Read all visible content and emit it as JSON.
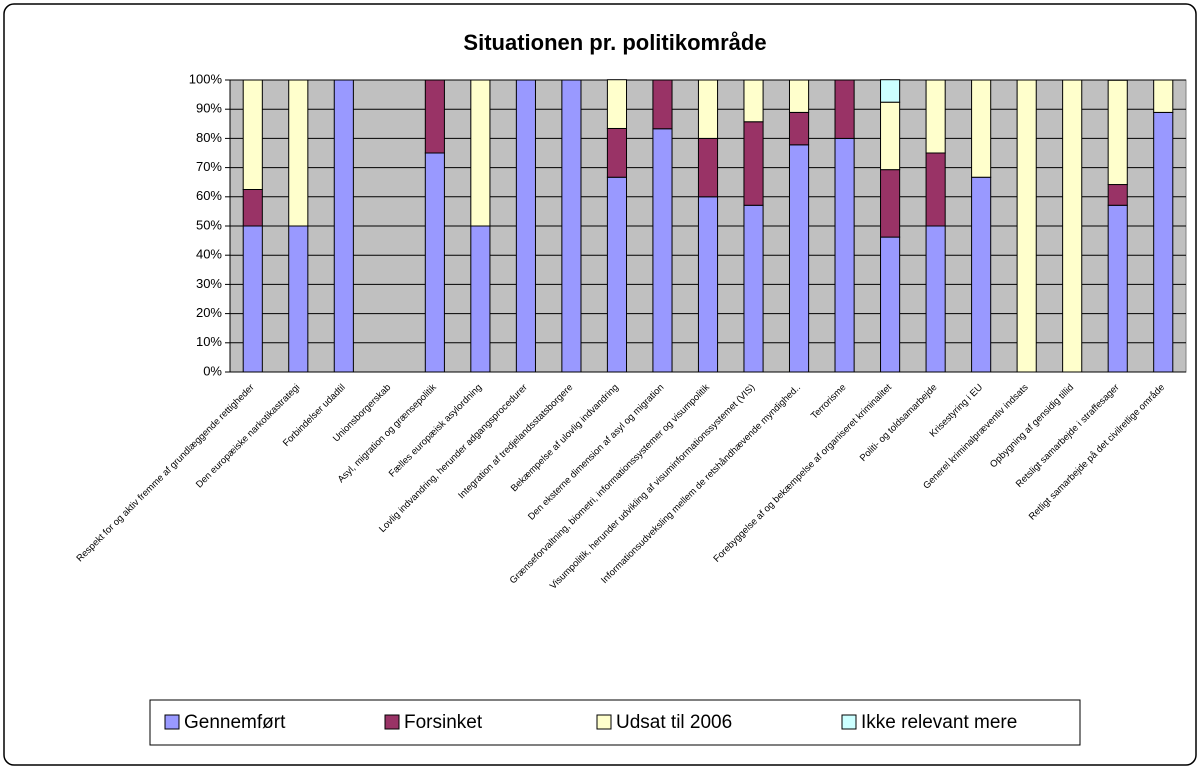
{
  "chart_data": {
    "type": "stacked_bar",
    "title": "Situationen pr. politikområde",
    "categories": [
      "Respekt for og aktiv fremme af grundlæggende rettigheder",
      "Den europæiske narkotikastrategi",
      "Forbindelser udadtil",
      "Unionsborgerskab",
      "Asyl, migration og grænsepolitik",
      "Fælles europæisk asylordning",
      "Lovlig indvandring, herunder adgangsprocedurer",
      "Integration af tredjelandsstatsborgere",
      "Bekæmpelse af ulovlig indvandring",
      "Den eksterne dimension af asyl og migration",
      "Grænseforvaltning, biometri, informationssystemer og visumpolitik",
      "Visumpolitik, herunder udvikling af visuminformationssystemet (VIS)",
      "Informationsudveksling mellem de retshåndhævende myndighed..",
      "Terrorisme",
      "Forebyggelse af og bekæmpelse af organiseret kriminalitet",
      "Politi- og toldsamarbejde",
      "Krisestyring i EU",
      "Generel kriminalpræventiv indsats",
      "Opbygning af gensidig tillid",
      "Retsligt samarbejde i straffesager",
      "Retligt samarbejde på det civilretlige område"
    ],
    "series": [
      {
        "name": "Gennemført",
        "color": "#9999ff",
        "values": [
          50,
          50,
          100,
          0,
          75,
          50,
          100,
          100,
          66.7,
          83.3,
          60,
          57.1,
          77.8,
          80,
          46.2,
          50,
          66.7,
          0,
          0,
          57.1,
          88.9
        ]
      },
      {
        "name": "Forsinket",
        "color": "#993366",
        "values": [
          12.5,
          0,
          0,
          0,
          25,
          0,
          0,
          0,
          16.7,
          16.7,
          20,
          28.6,
          11.1,
          20,
          23.1,
          25,
          0,
          0,
          0,
          7.1,
          0
        ]
      },
      {
        "name": "Udsat til 2006",
        "color": "#ffffcc",
        "values": [
          37.5,
          50,
          0,
          0,
          0,
          50,
          0,
          0,
          16.7,
          0,
          20,
          14.3,
          11.1,
          0,
          23.1,
          25,
          33.3,
          100,
          100,
          35.7,
          11.1
        ]
      },
      {
        "name": "Ikke relevant mere",
        "color": "#ccffff",
        "values": [
          0,
          0,
          0,
          0,
          0,
          0,
          0,
          0,
          0,
          0,
          0,
          0,
          0,
          0,
          7.7,
          0,
          0,
          0,
          0,
          0,
          0
        ]
      }
    ],
    "ylim": [
      0,
      100
    ],
    "yticks": [
      {
        "value": 0,
        "label": "0%"
      },
      {
        "value": 10,
        "label": "10%"
      },
      {
        "value": 20,
        "label": "20%"
      },
      {
        "value": 30,
        "label": "30%"
      },
      {
        "value": 40,
        "label": "40%"
      },
      {
        "value": 50,
        "label": "50%"
      },
      {
        "value": 60,
        "label": "60%"
      },
      {
        "value": 70,
        "label": "70%"
      },
      {
        "value": 80,
        "label": "80%"
      },
      {
        "value": 90,
        "label": "90%"
      },
      {
        "value": 100,
        "label": "100%"
      }
    ],
    "grid": true,
    "legend": "bottom",
    "plot_background": "#c0c0c0"
  }
}
